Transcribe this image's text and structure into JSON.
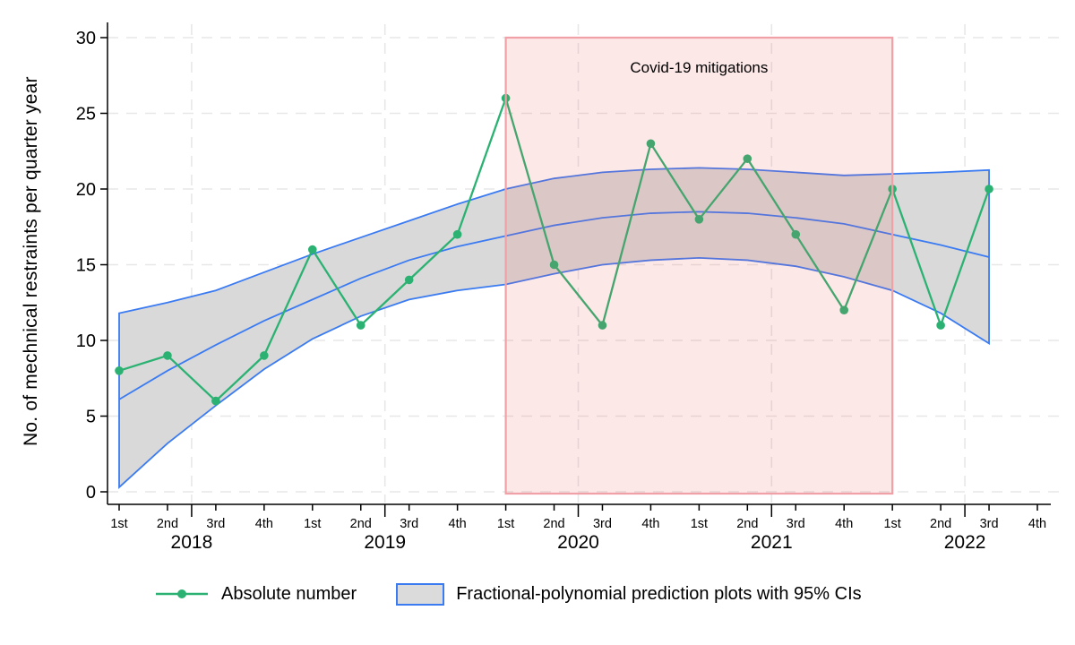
{
  "chart_data": {
    "type": "line",
    "ylabel": "No. of mechnical restraints per quarter year",
    "ylim": [
      0,
      30
    ],
    "yticks": [
      0,
      5,
      10,
      15,
      20,
      25,
      30
    ],
    "x_quarter_labels": [
      "1st",
      "2nd",
      "3rd",
      "4th",
      "1st",
      "2nd",
      "3rd",
      "4th",
      "1st",
      "2nd",
      "3rd",
      "4th",
      "1st",
      "2nd",
      "3rd",
      "4th",
      "1st",
      "2nd",
      "3rd",
      "4th"
    ],
    "x_year_labels": [
      "2018",
      "2019",
      "2020",
      "2021",
      "2022"
    ],
    "grid": true,
    "legend_position": "bottom",
    "series": [
      {
        "name": "Absolute number",
        "type": "line+marker",
        "color": "#2bb272",
        "values": [
          8,
          9,
          6,
          9,
          16,
          11,
          14,
          17,
          26,
          15,
          11,
          23,
          18,
          22,
          17,
          12,
          20,
          11,
          20
        ]
      },
      {
        "name": "Fractional-polynomial prediction plots with 95% CIs",
        "type": "band",
        "fill_color": "#d9d9d9",
        "line_color": "#3b7bf2",
        "center": [
          6.1,
          8.0,
          9.7,
          11.3,
          12.7,
          14.1,
          15.3,
          16.2,
          16.9,
          17.6,
          18.1,
          18.4,
          18.5,
          18.4,
          18.1,
          17.7,
          17.0,
          16.3,
          15.5
        ],
        "upper": [
          11.8,
          12.5,
          13.3,
          14.5,
          15.7,
          16.8,
          17.9,
          19.0,
          20.0,
          20.7,
          21.1,
          21.3,
          21.4,
          21.3,
          21.1,
          20.9,
          21.0,
          21.1,
          21.25
        ],
        "lower": [
          0.3,
          3.2,
          5.7,
          8.1,
          10.1,
          11.6,
          12.7,
          13.3,
          13.7,
          14.4,
          15.0,
          15.3,
          15.45,
          15.3,
          14.9,
          14.2,
          13.3,
          11.8,
          9.8
        ]
      }
    ],
    "annotation_region": {
      "label": "Covid-19 mitigations",
      "x_start_index": 8,
      "x_end_index": 16,
      "y_from": 0,
      "y_to": 30,
      "fill": "rgba(241,89,93,0.14)",
      "border_color": "#f0a0a7",
      "label_color": "#000000"
    },
    "colors": {
      "grid": "#e7e7e7",
      "axis": "#000000",
      "background": "#ffffff"
    }
  },
  "legend": {
    "items": [
      {
        "label": "Absolute number"
      },
      {
        "label": "Fractional-polynomial prediction plots with 95% CIs"
      }
    ]
  }
}
